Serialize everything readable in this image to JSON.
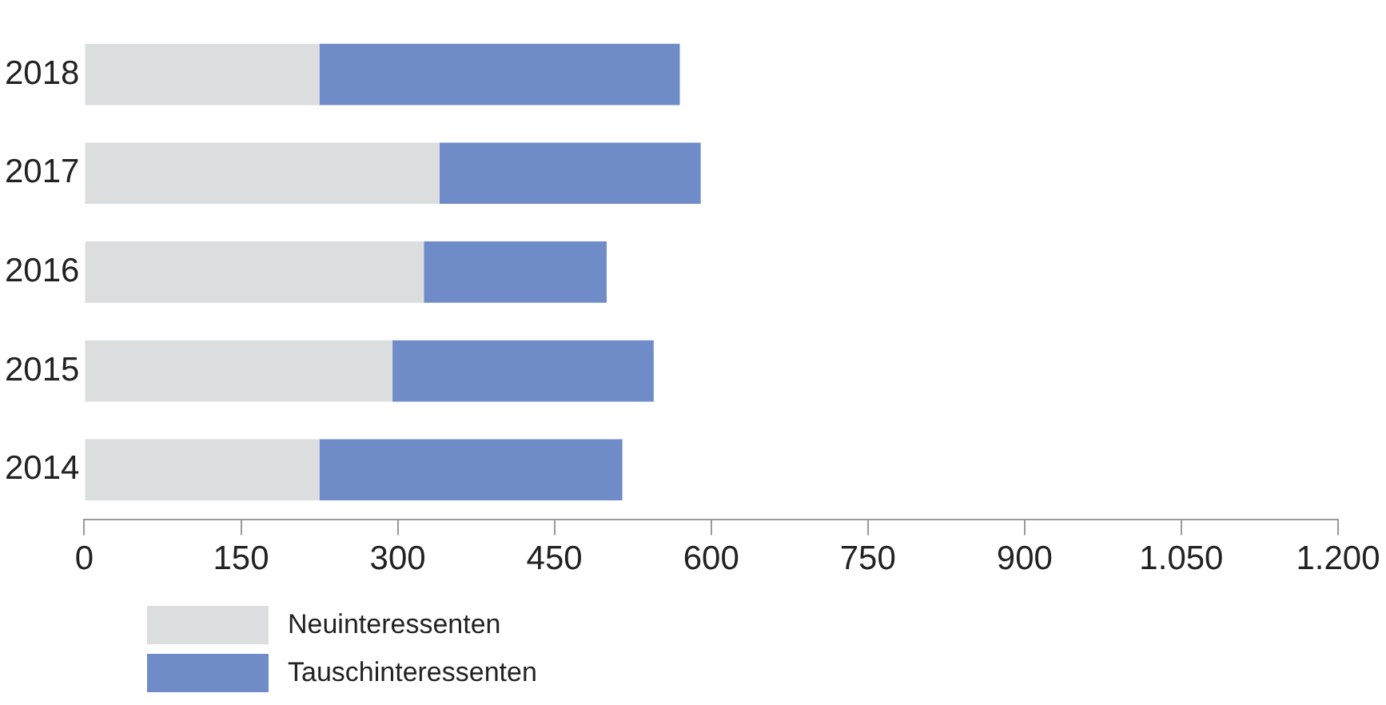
{
  "chart_data": {
    "type": "bar",
    "orientation": "horizontal",
    "stacked": true,
    "categories": [
      "2018",
      "2017",
      "2016",
      "2015",
      "2014"
    ],
    "series": [
      {
        "name": "Neuinteressenten",
        "color": "#dcdddf",
        "values": [
          225,
          340,
          325,
          295,
          225
        ]
      },
      {
        "name": "Tauschinteressenten",
        "color": "#6f8cc8",
        "values": [
          345,
          250,
          175,
          250,
          290
        ]
      }
    ],
    "xlim": [
      0,
      1200
    ],
    "xticks": [
      0,
      150,
      300,
      450,
      600,
      750,
      900,
      {
        "value": 1050,
        "label": "1.050"
      },
      {
        "value": 1200,
        "label": "1.200"
      }
    ],
    "grid": false,
    "legend": "bottom left"
  }
}
